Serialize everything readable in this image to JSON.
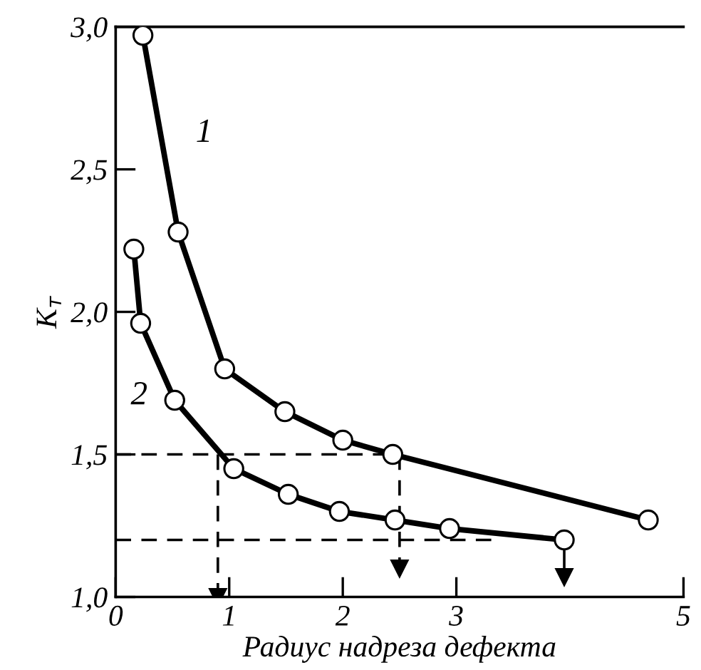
{
  "chart_data": {
    "type": "line",
    "xlabel": "Радиус надреза дефекта",
    "ylabel": "K$_{т}$",
    "xlim": [
      0,
      5
    ],
    "ylim": [
      1.0,
      3.0
    ],
    "xticks": [
      0,
      1,
      2,
      3,
      5
    ],
    "yticks": [
      {
        "value": 1.0,
        "label": "1,0"
      },
      {
        "value": 1.5,
        "label": "1,5"
      },
      {
        "value": 2.0,
        "label": "2,0"
      },
      {
        "value": 2.5,
        "label": "2,5"
      },
      {
        "value": 3.0,
        "label": "3,0"
      }
    ],
    "grid": false,
    "legend": false,
    "marker": "circle",
    "line_style": "solid",
    "series": [
      {
        "color": "#000000",
        "x": [
          0.24,
          0.55,
          0.96,
          1.49,
          2.0,
          2.44,
          4.69
        ],
        "values": [
          2.97,
          2.28,
          1.8,
          1.65,
          1.55,
          1.5,
          1.27
        ]
      },
      {
        "color": "#000000",
        "x": [
          0.16,
          0.22,
          0.52,
          1.04,
          1.52,
          1.97,
          2.46,
          2.94,
          3.95
        ],
        "values": [
          2.22,
          1.96,
          1.69,
          1.45,
          1.36,
          1.3,
          1.27,
          1.24,
          1.2
        ]
      },
      {
        "color": "#000000",
        "marker": "none",
        "line_style": "dashed",
        "x": [
          0,
          2.44
        ],
        "values": [
          1.5,
          1.5
        ]
      },
      {
        "color": "#000000",
        "marker": "none",
        "line_style": "dashed",
        "x": [
          0,
          3.33
        ],
        "values": [
          1.2,
          1.2
        ]
      },
      {
        "color": "#000000",
        "marker": "triangle",
        "line_style": "dashed",
        "x": [
          0.9,
          0.9
        ],
        "values": [
          1.5,
          1.0
        ]
      },
      {
        "color": "#000000",
        "marker": "triangle",
        "line_style": "dashed",
        "x": [
          2.5,
          2.5
        ],
        "values": [
          1.5,
          1.1
        ]
      },
      {
        "color": "#000000",
        "marker": "triangle",
        "line_style": "solid",
        "x": [
          3.95,
          3.95
        ],
        "values": [
          1.2,
          1.07
        ]
      }
    ],
    "annotations": [
      "1",
      "2"
    ]
  }
}
